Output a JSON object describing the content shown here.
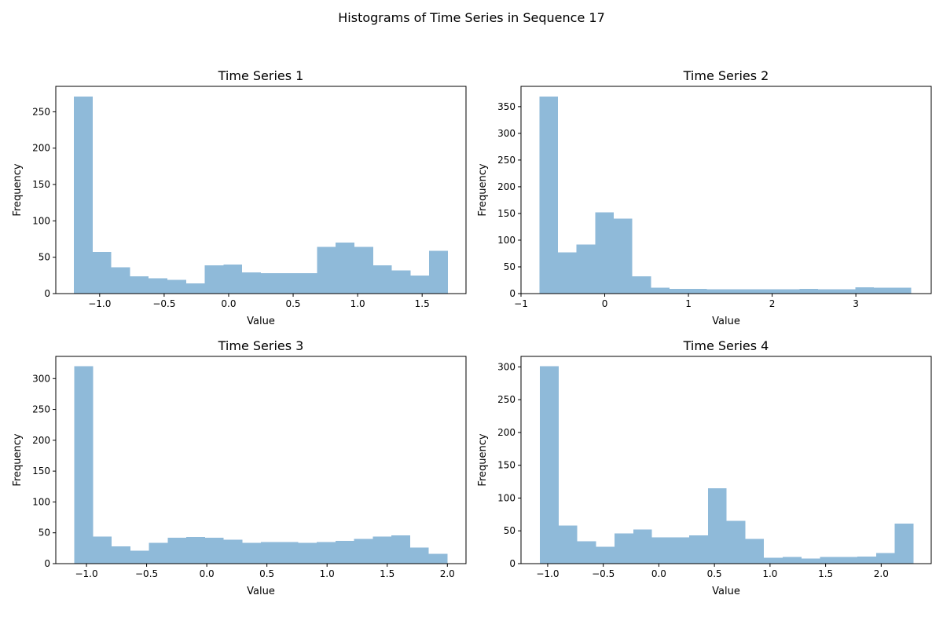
{
  "figure": {
    "title": "Histograms of Time Series in Sequence 17"
  },
  "colors": {
    "bar": "#8fbad9",
    "axis": "#000000",
    "background": "#ffffff"
  },
  "chart_data": [
    {
      "type": "bar",
      "title": "Time Series 1",
      "xlabel": "Value",
      "ylabel": "Frequency",
      "grid": false,
      "xlim": [
        -1.34,
        1.84
      ],
      "ylim": [
        0,
        285
      ],
      "xticks": [
        -1.0,
        -0.5,
        0.0,
        0.5,
        1.0,
        1.5
      ],
      "xtick_labels": [
        "−1.0",
        "−0.5",
        "0.0",
        "0.5",
        "1.0",
        "1.5"
      ],
      "yticks": [
        0,
        50,
        100,
        150,
        200,
        250
      ],
      "ytick_labels": [
        "0",
        "50",
        "100",
        "150",
        "200",
        "250"
      ],
      "bins_start": -1.2,
      "bin_width": 0.145,
      "values": [
        271,
        57,
        36,
        24,
        21,
        19,
        14,
        39,
        40,
        29,
        28,
        28,
        28,
        64,
        70,
        64,
        39,
        32,
        25,
        59
      ]
    },
    {
      "type": "bar",
      "title": "Time Series 2",
      "xlabel": "Value",
      "ylabel": "Frequency",
      "grid": false,
      "xlim": [
        -1.0,
        3.9
      ],
      "ylim": [
        0,
        388
      ],
      "xticks": [
        -1,
        0,
        1,
        2,
        3
      ],
      "xtick_labels": [
        "−1",
        "0",
        "1",
        "2",
        "3"
      ],
      "yticks": [
        0,
        50,
        100,
        150,
        200,
        250,
        300,
        350
      ],
      "ytick_labels": [
        "0",
        "50",
        "100",
        "150",
        "200",
        "250",
        "300",
        "350"
      ],
      "bins_start": -0.78,
      "bin_width": 0.222,
      "values": [
        369,
        77,
        92,
        152,
        140,
        32,
        11,
        9,
        9,
        8,
        8,
        8,
        8,
        8,
        9,
        8,
        8,
        12,
        11,
        11
      ]
    },
    {
      "type": "bar",
      "title": "Time Series 3",
      "xlabel": "Value",
      "ylabel": "Frequency",
      "grid": false,
      "xlim": [
        -1.255,
        2.155
      ],
      "ylim": [
        0,
        336
      ],
      "xticks": [
        -1.0,
        -0.5,
        0.0,
        0.5,
        1.0,
        1.5,
        2.0
      ],
      "xtick_labels": [
        "−1.0",
        "−0.5",
        "0.0",
        "0.5",
        "1.0",
        "1.5",
        "2.0"
      ],
      "yticks": [
        0,
        50,
        100,
        150,
        200,
        250,
        300
      ],
      "ytick_labels": [
        "0",
        "50",
        "100",
        "150",
        "200",
        "250",
        "300"
      ],
      "bins_start": -1.1,
      "bin_width": 0.155,
      "values": [
        320,
        44,
        28,
        21,
        34,
        42,
        43,
        42,
        39,
        34,
        35,
        35,
        34,
        35,
        37,
        40,
        44,
        46,
        26,
        16
      ]
    },
    {
      "type": "bar",
      "title": "Time Series 4",
      "xlabel": "Value",
      "ylabel": "Frequency",
      "grid": false,
      "xlim": [
        -1.24,
        2.45
      ],
      "ylim": [
        0,
        316
      ],
      "xticks": [
        -1.0,
        -0.5,
        0.0,
        0.5,
        1.0,
        1.5,
        2.0
      ],
      "xtick_labels": [
        "−1.0",
        "−0.5",
        "0.0",
        "0.5",
        "1.0",
        "1.5",
        "2.0"
      ],
      "yticks": [
        0,
        50,
        100,
        150,
        200,
        250,
        300
      ],
      "ytick_labels": [
        "0",
        "50",
        "100",
        "150",
        "200",
        "250",
        "300"
      ],
      "bins_start": -1.07,
      "bin_width": 0.168,
      "values": [
        301,
        58,
        34,
        26,
        46,
        52,
        40,
        40,
        43,
        115,
        65,
        38,
        9,
        10,
        8,
        10,
        10,
        11,
        16,
        61
      ]
    }
  ]
}
